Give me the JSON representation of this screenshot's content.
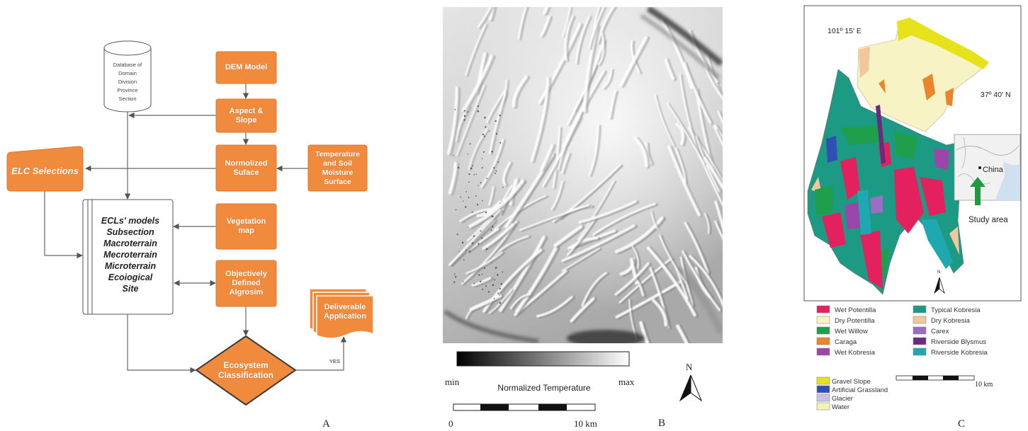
{
  "theme": {
    "node_fill": "#f08a3c"
  },
  "panel_a": {
    "label": "A",
    "database": {
      "icon": "database-icon",
      "lines": [
        "Database of",
        "Domain",
        "Division",
        "Province",
        "Section"
      ]
    },
    "nodes": {
      "dem_model": "DEM Model",
      "aspect_slope": "Aspect & Slope",
      "normalized_surface": "Normolized Suface",
      "temperature_soil": "Temperature and Soil Moisture Surface",
      "elc_selections": "ELC Selections",
      "vegetation_map": "Vegetation map",
      "objectively_defined": "Objectively Defined Algrosim",
      "ecosystem_classification": "Ecosystem Classification",
      "deliverable_application": "Deliverable Application"
    },
    "ecl_models": {
      "lines": [
        "ECLs' models",
        "Subsection",
        "Macroterrain",
        "Mecroterrain",
        "Microterrain",
        "Ecoiogical",
        "Site"
      ]
    },
    "yes_label": "YES"
  },
  "panel_b": {
    "label": "B",
    "colorbar": {
      "min": "min",
      "max": "max",
      "title": "Normalized Temperature",
      "colors": [
        "#000000",
        "#ffffff"
      ]
    },
    "scale_bar": {
      "start": "0",
      "end": "10 km"
    },
    "north_label": "N",
    "north_icon": "north-arrow-icon"
  },
  "panel_c": {
    "label": "C",
    "longitude": "101º 15' E",
    "latitude": "37º 40' N",
    "inset": {
      "country": "China",
      "caption": "Study area",
      "arrow_color": "#1f9a3e"
    },
    "north_label": "N",
    "north_icon": "north-arrow-icon",
    "legend": [
      {
        "label": "Wet Potentilla",
        "color": "#e3215f"
      },
      {
        "label": "Dry Potentilla",
        "color": "#f7f3c4"
      },
      {
        "label": "Wet Willow",
        "color": "#1f9e4c"
      },
      {
        "label": "Caraga",
        "color": "#e9862b"
      },
      {
        "label": "Wet Kobresia",
        "color": "#9b46a8"
      },
      {
        "label": "Typical Kobresia",
        "color": "#1d9a83"
      },
      {
        "label": "Dry Kobresia",
        "color": "#f2c89a"
      },
      {
        "label": "Carex",
        "color": "#9a6ec2"
      },
      {
        "label": "Riverside Blysmus",
        "color": "#6b2a80"
      },
      {
        "label": "Riverside Kobresia",
        "color": "#1fa8b0"
      }
    ],
    "legend_other": [
      {
        "label": "Gravel Slope",
        "color": "#e6e31c"
      },
      {
        "label": "Artificial Grassland",
        "color": "#2f4fb5"
      },
      {
        "label": "Glacier",
        "color": "#c9c3e3"
      },
      {
        "label": "Water",
        "color": "#f4f2b8"
      }
    ],
    "scale_bar": {
      "end": "10 km"
    }
  }
}
